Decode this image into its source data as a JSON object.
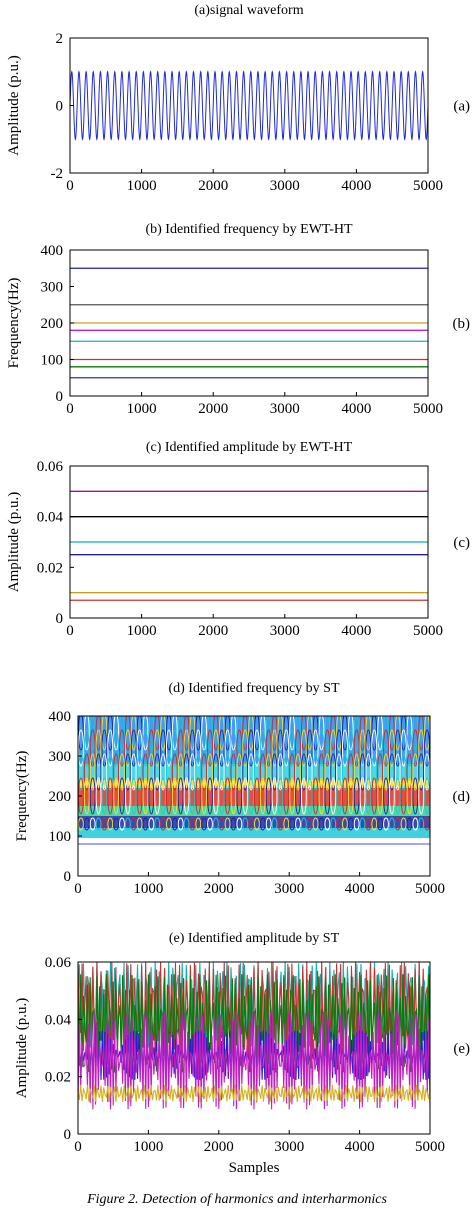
{
  "caption": "Figure 2. Detection of harmonics and interharmonics",
  "colors": {
    "axis": "#000000",
    "signal": "#1f2bd6",
    "freq_lines": [
      "#2b2bbf",
      "#0a7a0a",
      "#c83232",
      "#10b8b8",
      "#c020c0",
      "#d4a020",
      "#555555",
      "#2020a0"
    ],
    "amp_lines": [
      "#a010a0",
      "#000000",
      "#10b0b0",
      "#202090",
      "#c8a020",
      "#c83232"
    ]
  },
  "chart_data": [
    {
      "id": "a",
      "type": "line",
      "title": "(a)signal  waveform",
      "side_label": "(a)",
      "xlabel": "",
      "ylabel": "Amplitude (p.u.)",
      "xlim": [
        0,
        5000
      ],
      "ylim": [
        -2,
        2
      ],
      "xticks": [
        "0",
        "1000",
        "2000",
        "3000",
        "4000",
        "5000"
      ],
      "yticks": [
        "-2",
        "0",
        "2"
      ],
      "series": [
        {
          "amplitude": 1.0,
          "cycles": 50
        }
      ],
      "grid": false
    },
    {
      "id": "b",
      "type": "line",
      "title": "(b) Identified frequency by EWT-HT",
      "side_label": "(b)",
      "xlabel": "",
      "ylabel": "Frequency(Hz)",
      "xlim": [
        0,
        5000
      ],
      "ylim": [
        0,
        400
      ],
      "xticks": [
        "0",
        "1000",
        "2000",
        "3000",
        "4000",
        "5000"
      ],
      "yticks": [
        "0",
        "100",
        "200",
        "300",
        "400"
      ],
      "series": [
        {
          "value": 50
        },
        {
          "value": 80
        },
        {
          "value": 100
        },
        {
          "value": 150
        },
        {
          "value": 180
        },
        {
          "value": 200
        },
        {
          "value": 250
        },
        {
          "value": 350
        }
      ],
      "grid": false
    },
    {
      "id": "c",
      "type": "line",
      "title": "(c) Identified amplitude by EWT-HT",
      "side_label": "(c)",
      "xlabel": "",
      "ylabel": "Amplitude (p.u.)",
      "xlim": [
        0,
        5000
      ],
      "ylim": [
        0,
        0.06
      ],
      "xticks": [
        "0",
        "1000",
        "2000",
        "3000",
        "4000",
        "5000"
      ],
      "yticks": [
        "0",
        "0.02",
        "0.04",
        "0.06"
      ],
      "series": [
        {
          "value": 0.05
        },
        {
          "value": 0.04
        },
        {
          "value": 0.03
        },
        {
          "value": 0.025
        },
        {
          "value": 0.01
        },
        {
          "value": 0.007
        }
      ],
      "grid": false
    },
    {
      "id": "d",
      "type": "heatmap",
      "title": "(d) Identified frequency by ST",
      "side_label": "(d)",
      "xlabel": "",
      "ylabel": "Frequency(Hz)",
      "xlim": [
        0,
        5000
      ],
      "ylim": [
        0,
        400
      ],
      "xticks": [
        "0",
        "1000",
        "2000",
        "3000",
        "4000",
        "5000"
      ],
      "yticks": [
        "0",
        "100",
        "200",
        "300",
        "400"
      ],
      "bands": [
        {
          "from": 280,
          "to": 400,
          "color": "#1e8cf0"
        },
        {
          "from": 240,
          "to": 280,
          "color": "#30d0e0"
        },
        {
          "from": 220,
          "to": 240,
          "color": "#f0e030"
        },
        {
          "from": 175,
          "to": 220,
          "color": "#e03020"
        },
        {
          "from": 150,
          "to": 175,
          "color": "#30d090"
        },
        {
          "from": 120,
          "to": 150,
          "color": "#1a2aa0"
        },
        {
          "from": 95,
          "to": 120,
          "color": "#20c8d8"
        }
      ],
      "lines": [
        {
          "value": 80
        }
      ],
      "grid": false
    },
    {
      "id": "e",
      "type": "line",
      "title": "(e) Identified amplitude by ST",
      "side_label": "(e)",
      "xlabel": "Samples",
      "ylabel": "Amplitude (p.u.)",
      "xlim": [
        0,
        5000
      ],
      "ylim": [
        0,
        0.07
      ],
      "xticks": [
        "0",
        "1000",
        "2000",
        "3000",
        "4000",
        "5000"
      ],
      "yticks": [
        "0",
        "0.02",
        "0.04",
        "0.06"
      ],
      "series": [
        {
          "color": "#10b0b0",
          "low": 0.035,
          "high": 0.07
        },
        {
          "color": "#c83232",
          "low": 0.03,
          "high": 0.07
        },
        {
          "color": "#0a7a0a",
          "low": 0.025,
          "high": 0.065
        },
        {
          "color": "#2020d0",
          "low": 0.022,
          "high": 0.042
        },
        {
          "color": "#c020c0",
          "low": 0.01,
          "high": 0.05
        },
        {
          "color": "#d4b020",
          "low": 0.013,
          "high": 0.02
        }
      ],
      "grid": false
    }
  ]
}
